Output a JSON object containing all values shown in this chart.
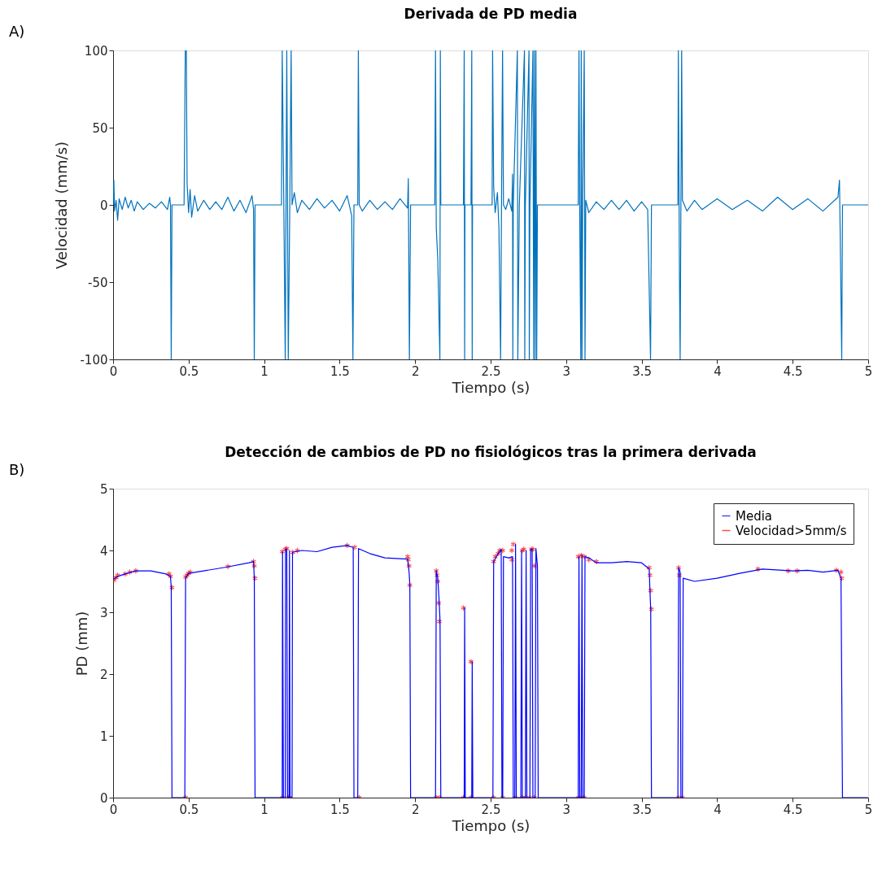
{
  "chart_data": [
    {
      "type": "line",
      "title": "Derivada de PD media",
      "xlabel": "Tiempo (s)",
      "ylabel": "Velocidad (mm/s)",
      "annotations": [
        "A)"
      ],
      "xlim": [
        0,
        5
      ],
      "ylim": [
        -100,
        100
      ],
      "xticks": [
        0,
        0.5,
        1,
        1.5,
        2,
        2.5,
        3,
        3.5,
        4,
        4.5,
        5
      ],
      "yticks": [
        -100,
        -50,
        0,
        50,
        100
      ],
      "grid": false,
      "series": [
        {
          "color": "#0072bd",
          "x": [
            0,
            0.005,
            0.01,
            0.02,
            0.03,
            0.04,
            0.06,
            0.08,
            0.1,
            0.12,
            0.14,
            0.16,
            0.2,
            0.24,
            0.28,
            0.32,
            0.36,
            0.375,
            0.38,
            0.385,
            0.39,
            0.47,
            0.478,
            0.485,
            0.49,
            0.5,
            0.51,
            0.52,
            0.54,
            0.56,
            0.6,
            0.64,
            0.68,
            0.72,
            0.76,
            0.8,
            0.84,
            0.88,
            0.92,
            0.93,
            0.935,
            0.94,
            1.115,
            1.12,
            1.13,
            1.14,
            1.15,
            1.16,
            1.17,
            1.179,
            1.185,
            1.2,
            1.22,
            1.25,
            1.3,
            1.35,
            1.4,
            1.45,
            1.5,
            1.55,
            1.58,
            1.588,
            1.595,
            1.62,
            1.624,
            1.63,
            1.65,
            1.7,
            1.75,
            1.8,
            1.85,
            1.9,
            1.95,
            1.955,
            1.958,
            1.962,
            1.97,
            2.13,
            2.135,
            2.14,
            2.15,
            2.164,
            2.167,
            2.17,
            2.32,
            2.325,
            2.328,
            2.33,
            2.37,
            2.375,
            2.378,
            2.38,
            2.51,
            2.513,
            2.52,
            2.53,
            2.545,
            2.555,
            2.566,
            2.572,
            2.579,
            2.585,
            2.6,
            2.62,
            2.64,
            2.645,
            2.647,
            2.65,
            2.677,
            2.68,
            2.69,
            2.724,
            2.726,
            2.73,
            2.754,
            2.756,
            2.76,
            2.78,
            2.785,
            2.79,
            2.795,
            2.8,
            2.805,
            2.81,
            3.08,
            3.085,
            3.09,
            3.097,
            3.1,
            3.105,
            3.11,
            3.12,
            3.125,
            3.13,
            3.15,
            3.2,
            3.25,
            3.3,
            3.35,
            3.4,
            3.45,
            3.5,
            3.54,
            3.559,
            3.565,
            3.74,
            3.743,
            3.75,
            3.755,
            3.765,
            3.77,
            3.8,
            3.85,
            3.9,
            4.0,
            4.1,
            4.2,
            4.3,
            4.4,
            4.5,
            4.6,
            4.7,
            4.8,
            4.81,
            4.815,
            4.825,
            4.83,
            5
          ],
          "values": [
            0,
            16,
            -4,
            3,
            -10,
            4,
            -3,
            5,
            -2,
            3,
            -4,
            2,
            -3,
            1,
            -2,
            2,
            -3,
            5,
            0,
            -100,
            0,
            0,
            100,
            100,
            14,
            -5,
            10,
            -8,
            6,
            -4,
            3,
            -3,
            2,
            -3,
            5,
            -4,
            3,
            -5,
            6,
            -3,
            -100,
            0,
            0,
            100,
            5,
            -100,
            100,
            -100,
            0,
            100,
            0,
            8,
            -5,
            3,
            -3,
            4,
            -2,
            3,
            -4,
            6,
            -7,
            -100,
            0,
            0,
            100,
            0,
            -4,
            3,
            -3,
            2,
            -3,
            4,
            -2,
            17,
            -35,
            -100,
            0,
            0,
            100,
            -15,
            -35,
            -100,
            100,
            0,
            0,
            100,
            -100,
            0,
            0,
            100,
            -100,
            0,
            0,
            100,
            12,
            -5,
            8,
            -15,
            -100,
            0,
            100,
            0,
            -3,
            4,
            -4,
            20,
            -100,
            0,
            100,
            -100,
            0,
            100,
            -100,
            0,
            100,
            -100,
            0,
            100,
            -100,
            100,
            -100,
            100,
            -100,
            0,
            0,
            100,
            -5,
            -100,
            100,
            -100,
            5,
            100,
            -100,
            3,
            -5,
            2,
            -3,
            3,
            -3,
            3,
            -4,
            2,
            -3,
            -100,
            0,
            0,
            100,
            -40,
            -100,
            100,
            3,
            -4,
            3,
            -3,
            4,
            -3,
            3,
            -4,
            5,
            -3,
            4,
            -4,
            5,
            16,
            -20,
            -100,
            0,
            0
          ]
        }
      ]
    },
    {
      "type": "line",
      "title": "Detección de cambios de PD no fisiológicos tras la primera derivada",
      "xlabel": "Tiempo (s)",
      "ylabel": "PD (mm)",
      "annotations": [
        "B)"
      ],
      "xlim": [
        0,
        5
      ],
      "ylim": [
        0,
        5
      ],
      "xticks": [
        0,
        0.5,
        1,
        1.5,
        2,
        2.5,
        3,
        3.5,
        4,
        4.5,
        5
      ],
      "yticks": [
        0,
        1,
        2,
        3,
        4,
        5
      ],
      "grid": false,
      "legend": "top right",
      "series": [
        {
          "name": "Media",
          "color": "#0000ff",
          "type": "line",
          "x": [
            0,
            0.03,
            0.08,
            0.15,
            0.25,
            0.35,
            0.38,
            0.385,
            0.39,
            0.475,
            0.48,
            0.5,
            0.6,
            0.75,
            0.9,
            0.93,
            0.935,
            0.94,
            1.12,
            1.122,
            1.128,
            1.14,
            1.142,
            1.15,
            1.155,
            1.165,
            1.168,
            1.172,
            1.185,
            1.188,
            1.25,
            1.35,
            1.45,
            1.55,
            1.59,
            1.595,
            1.62,
            1.625,
            1.7,
            1.8,
            1.95,
            1.96,
            1.965,
            1.97,
            2.135,
            2.14,
            2.15,
            2.16,
            2.165,
            2.17,
            2.325,
            2.328,
            2.332,
            2.375,
            2.378,
            2.382,
            2.515,
            2.52,
            2.55,
            2.57,
            2.575,
            2.58,
            2.585,
            2.62,
            2.645,
            2.65,
            2.66,
            2.665,
            2.67,
            2.7,
            2.705,
            2.71,
            2.73,
            2.735,
            2.74,
            2.76,
            2.765,
            2.775,
            2.78,
            2.795,
            2.8,
            2.81,
            2.815,
            3.08,
            3.085,
            3.09,
            3.1,
            3.105,
            3.11,
            3.12,
            3.125,
            3.15,
            3.2,
            3.3,
            3.4,
            3.5,
            3.55,
            3.555,
            3.56,
            3.565,
            3.74,
            3.745,
            3.755,
            3.76,
            3.77,
            3.775,
            3.85,
            4.0,
            4.15,
            4.3,
            4.5,
            4.6,
            4.7,
            4.8,
            4.82,
            4.83,
            5
          ],
          "values": [
            3.53,
            3.58,
            3.62,
            3.67,
            3.67,
            3.62,
            3.58,
            3.4,
            0,
            0,
            3.55,
            3.63,
            3.67,
            3.73,
            3.8,
            3.82,
            3.55,
            0,
            0,
            3.98,
            0,
            0,
            4.02,
            4.02,
            0,
            0,
            4.0,
            0,
            0,
            3.97,
            4.0,
            3.98,
            4.05,
            4.08,
            4.05,
            0,
            0,
            4.03,
            3.95,
            3.88,
            3.86,
            3.65,
            3.44,
            0,
            0,
            3.67,
            3.55,
            3.15,
            2.85,
            0,
            0,
            3.07,
            0,
            0,
            2.2,
            0,
            0,
            3.82,
            3.95,
            4.02,
            0,
            0,
            3.9,
            3.88,
            3.9,
            0,
            0,
            4.1,
            0,
            0,
            4.0,
            0,
            0,
            4.0,
            0,
            0,
            4.02,
            4.02,
            0,
            0,
            4.03,
            3.75,
            0,
            0,
            3.9,
            0,
            0,
            3.93,
            0,
            0,
            3.9,
            3.88,
            3.8,
            3.8,
            3.82,
            3.8,
            3.7,
            3.35,
            3.05,
            0,
            0,
            3.72,
            3.65,
            0,
            0,
            3.55,
            3.5,
            3.55,
            3.63,
            3.7,
            3.67,
            3.68,
            3.65,
            3.68,
            3.55,
            0,
            0
          ]
        },
        {
          "name": "Velocidad>5mm/s",
          "color": "#ff0000",
          "type": "scatter",
          "marker": "cross",
          "x": [
            0.005,
            0.02,
            0.03,
            0.08,
            0.11,
            0.15,
            0.37,
            0.38,
            0.39,
            0.48,
            0.48,
            0.49,
            0.5,
            0.51,
            0.76,
            0.93,
            0.935,
            0.94,
            1.12,
            1.12,
            1.14,
            1.15,
            1.16,
            1.17,
            1.19,
            1.22,
            1.55,
            1.6,
            1.63,
            1.95,
            1.955,
            1.96,
            1.965,
            2.14,
            2.145,
            2.15,
            2.155,
            2.16,
            2.14,
            2.16,
            2.32,
            2.32,
            2.37,
            2.37,
            2.52,
            2.53,
            2.55,
            2.56,
            2.52,
            2.58,
            2.58,
            2.65,
            2.64,
            2.64,
            2.71,
            2.72,
            2.77,
            2.78,
            2.79,
            2.66,
            2.71,
            2.73,
            2.76,
            2.79,
            3.08,
            3.1,
            3.12,
            3.15,
            3.2,
            3.08,
            3.1,
            3.12,
            3.55,
            3.555,
            3.56,
            3.565,
            3.745,
            3.75,
            3.745,
            3.77,
            4.27,
            4.47,
            4.53,
            4.79,
            4.82,
            4.825
          ],
          "values": [
            3.52,
            3.56,
            3.6,
            3.62,
            3.65,
            3.67,
            3.62,
            3.58,
            3.4,
            0,
            3.57,
            3.6,
            3.63,
            3.65,
            3.74,
            3.82,
            3.75,
            3.55,
            0,
            3.98,
            4.02,
            4.03,
            0,
            0,
            3.97,
            4.0,
            4.08,
            4.05,
            0,
            3.9,
            3.85,
            3.75,
            3.44,
            3.67,
            3.6,
            3.5,
            3.15,
            2.85,
            0,
            0,
            3.07,
            0,
            2.2,
            0,
            3.82,
            3.9,
            3.95,
            4.0,
            0,
            4.0,
            0,
            4.1,
            3.85,
            4.0,
            4.0,
            4.02,
            4.02,
            4.02,
            3.75,
            0,
            0,
            0,
            0,
            0,
            3.9,
            3.92,
            3.9,
            3.85,
            3.82,
            0,
            0,
            0,
            3.72,
            3.6,
            3.35,
            3.05,
            3.72,
            3.6,
            0,
            0,
            3.7,
            3.67,
            3.67,
            3.68,
            3.65,
            3.55
          ]
        }
      ]
    }
  ]
}
